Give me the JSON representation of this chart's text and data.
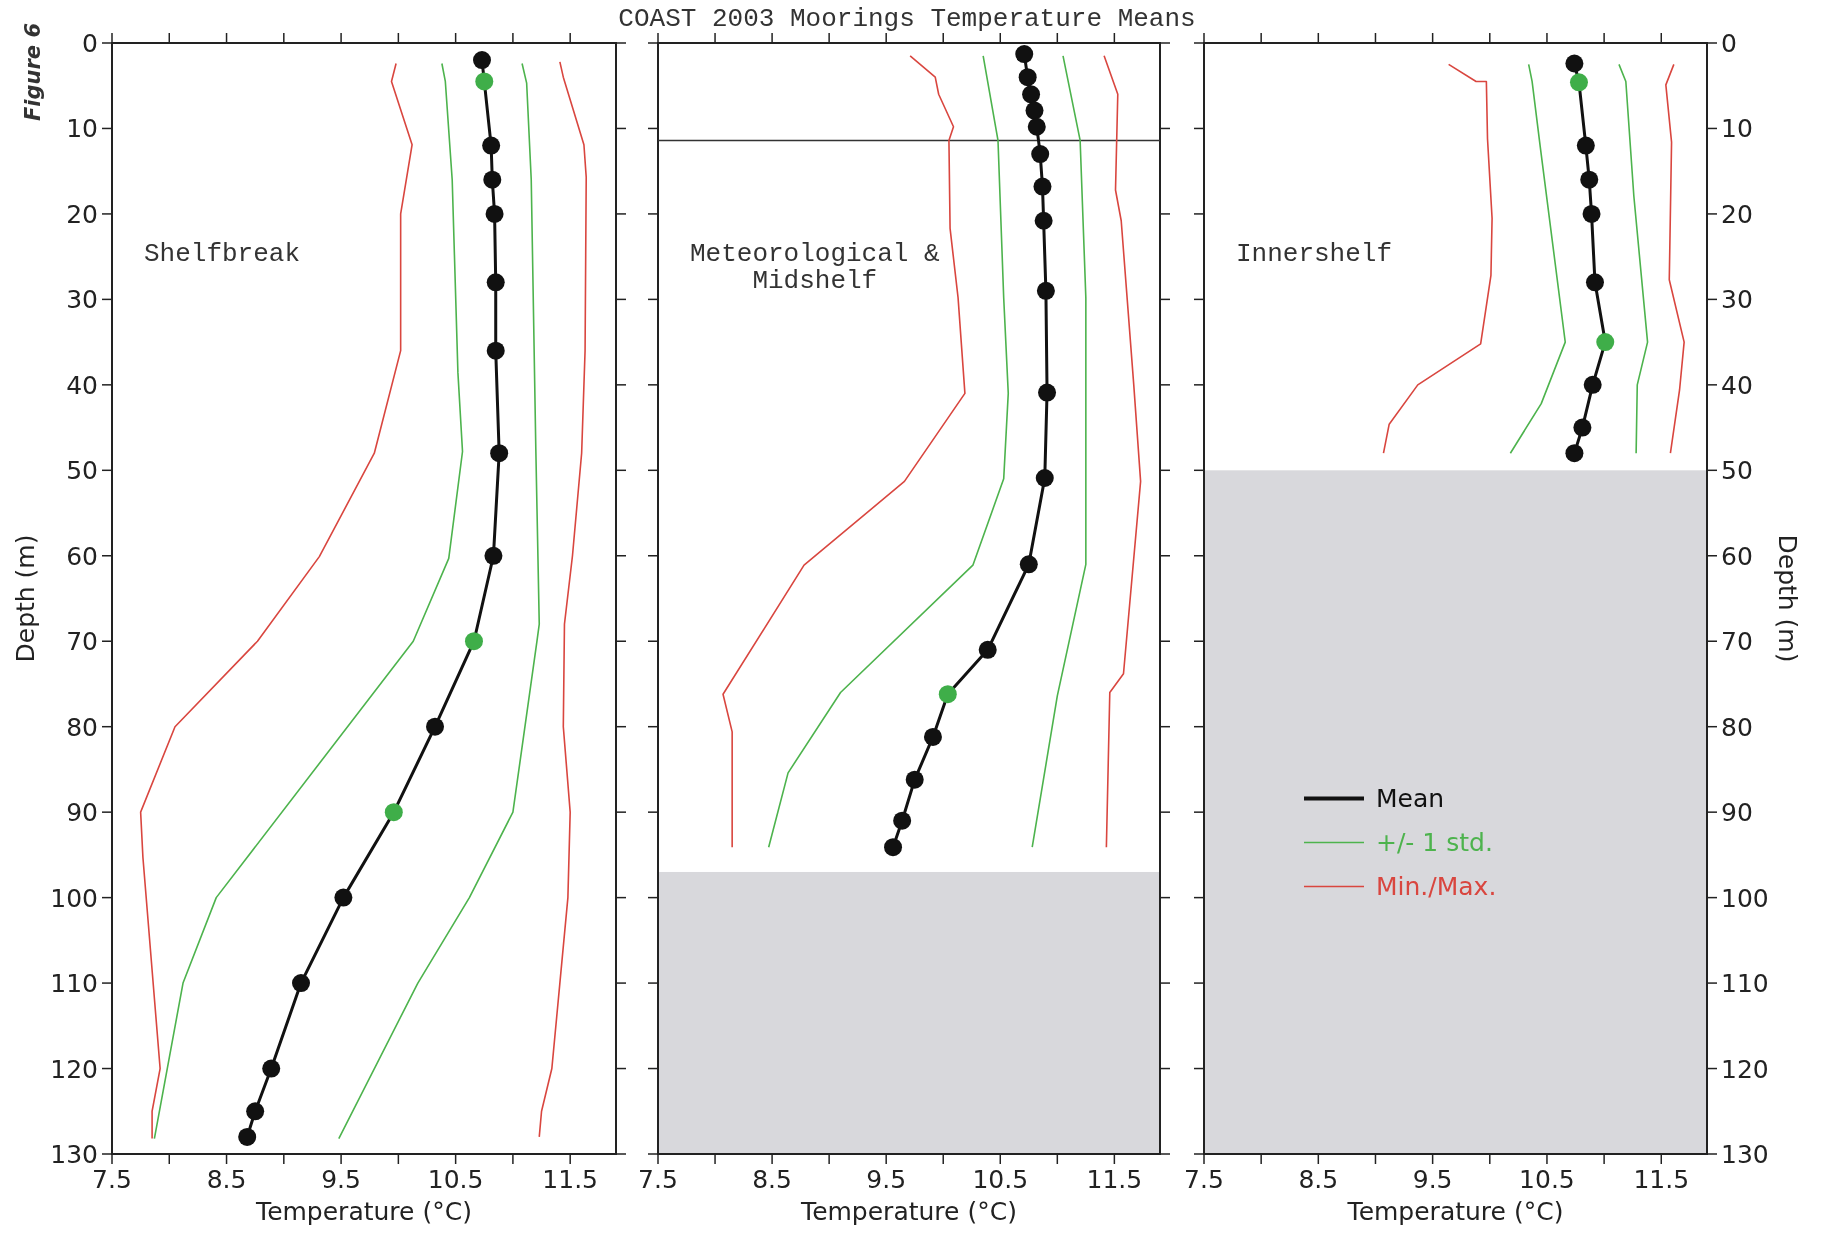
{
  "chart_data": [
    {
      "type": "line",
      "title": "Shelfbreak",
      "xlabel": "Temperature (°C)",
      "ylabel": "Depth (m)",
      "xlim": [
        7.5,
        11.9
      ],
      "ylim": [
        130,
        0
      ],
      "xticks": [
        7.5,
        {
          "value": 8,
          "label": null
        },
        8.5,
        {
          "value": 9,
          "label": null
        },
        9.5,
        {
          "value": 10,
          "label": null
        },
        10.5,
        {
          "value": 11,
          "label": null
        },
        11.5
      ],
      "yticks": [
        0,
        10,
        20,
        30,
        40,
        50,
        60,
        70,
        80,
        90,
        100,
        110,
        120,
        130
      ],
      "annotations": [
        "COAST 2003 Moorings Temperature Means",
        "Figure 6"
      ],
      "series": [
        {
          "color": "#111111",
          "marker": "circle",
          "x": [
            10.73,
            10.75,
            10.81,
            10.82,
            10.84,
            10.85,
            10.85,
            10.88,
            10.83,
            10.66,
            10.32,
            9.96,
            9.52,
            9.15,
            8.89,
            8.75,
            8.68
          ],
          "values": [
            2,
            4.5,
            12,
            16,
            20,
            28,
            36,
            48,
            60,
            70,
            80,
            90,
            100,
            110,
            120,
            125,
            128
          ],
          "colors": [
            "#111111",
            "#3fae49",
            "#111111",
            "#111111",
            "#111111",
            "#111111",
            "#111111",
            "#111111",
            "#111111",
            "#3fae49",
            "#111111",
            "#3fae49",
            "#111111",
            "#111111",
            "#111111",
            "#111111",
            "#111111"
          ]
        },
        {
          "color": "#4db34d",
          "x": [
            10.38,
            10.41,
            10.47,
            10.52,
            10.56,
            10.44,
            10.13,
            8.41,
            8.12,
            7.87
          ],
          "values": [
            2.4,
            4.5,
            16,
            38.6,
            47.8,
            60.3,
            70,
            100,
            110,
            128.2
          ]
        },
        {
          "color": "#4db34d",
          "x": [
            11.08,
            11.12,
            11.16,
            11.2,
            11.23,
            11.21,
            11.0,
            10.62,
            10.17,
            9.48
          ],
          "values": [
            2.4,
            4.7,
            16,
            47.5,
            68,
            70,
            90,
            100,
            110,
            128.2
          ]
        },
        {
          "color": "#d9463f",
          "x": [
            9.98,
            9.94,
            10.12,
            10.02,
            10.02,
            9.79,
            9.31,
            8.77,
            8.05,
            7.75,
            7.77,
            7.92,
            7.85,
            7.85
          ],
          "values": [
            2.4,
            4.5,
            11.9,
            20,
            36,
            48,
            60.1,
            70,
            80,
            90,
            95.3,
            120,
            125,
            128.2
          ]
        },
        {
          "color": "#d9463f",
          "x": [
            11.41,
            11.44,
            11.62,
            11.64,
            11.63,
            11.6,
            11.52,
            11.45,
            11.44,
            11.5,
            11.48,
            11.41,
            11.34,
            11.25,
            11.23
          ],
          "values": [
            2.2,
            4,
            11.9,
            15.7,
            36,
            48,
            60,
            68,
            80,
            90,
            100,
            110,
            120,
            125,
            128
          ]
        }
      ]
    },
    {
      "type": "line",
      "title": "Meteorological &\nMidshelf",
      "xlabel": "Temperature (°C)",
      "xlim": [
        7.5,
        11.9
      ],
      "ylim": [
        130,
        0
      ],
      "tick_labels": "x",
      "xticks": [
        7.5,
        {
          "value": 8,
          "label": null
        },
        8.5,
        {
          "value": 9,
          "label": null
        },
        9.5,
        {
          "value": 10,
          "label": null
        },
        10.5,
        {
          "value": 11,
          "label": null
        },
        11.5
      ],
      "yticks": [
        0,
        10,
        20,
        30,
        40,
        50,
        60,
        70,
        80,
        90,
        100,
        110,
        120,
        130
      ],
      "bands": [
        {
          "axis": "y",
          "from": 97,
          "to": 130,
          "color": "#d8d8dc"
        }
      ],
      "ref_lines": [
        {
          "axis": "y",
          "value": 11.4,
          "color": "#333333"
        }
      ],
      "series": [
        {
          "color": "#111111",
          "marker": "circle",
          "x": [
            10.71,
            10.74,
            10.77,
            10.8,
            10.82,
            10.85,
            10.87,
            10.88,
            10.9,
            10.91,
            10.89,
            10.75,
            10.39,
            10.04,
            9.91,
            9.75,
            9.64,
            9.56
          ],
          "values": [
            1.3,
            4,
            6,
            7.9,
            9.8,
            13,
            16.8,
            20.8,
            29,
            40.9,
            50.9,
            61,
            71,
            76.2,
            81.2,
            86.2,
            91,
            94.1
          ],
          "colors": [
            "#111111",
            "#111111",
            "#111111",
            "#111111",
            "#111111",
            "#111111",
            "#111111",
            "#111111",
            "#111111",
            "#111111",
            "#111111",
            "#111111",
            "#111111",
            "#3fae49",
            "#111111",
            "#111111",
            "#111111",
            "#111111"
          ]
        },
        {
          "color": "#4db34d",
          "x": [
            10.35,
            10.48,
            10.53,
            10.57,
            10.53,
            10.26,
            9.1,
            8.64,
            8.47
          ],
          "values": [
            1.5,
            11.4,
            29.8,
            41,
            51,
            61.1,
            76,
            85.4,
            94.1
          ]
        },
        {
          "color": "#4db34d",
          "x": [
            11.05,
            11.2,
            11.25,
            11.25,
            11.0,
            10.78
          ],
          "values": [
            1.5,
            11.4,
            29.8,
            61,
            76.4,
            94.1
          ]
        },
        {
          "color": "#d9463f",
          "x": [
            9.71,
            9.93,
            9.96,
            10.09,
            10.05,
            10.06,
            10.13,
            10.19,
            9.66,
            8.78,
            8.07,
            8.15,
            8.15
          ],
          "values": [
            1.5,
            4,
            6,
            9.8,
            11.4,
            21.7,
            29.8,
            41,
            51.3,
            61.1,
            76.2,
            80.6,
            94.1
          ]
        },
        {
          "color": "#d9463f",
          "x": [
            11.41,
            11.53,
            11.51,
            11.56,
            11.67,
            11.73,
            11.58,
            11.46,
            11.43
          ],
          "values": [
            1.5,
            6,
            17.2,
            20.8,
            40,
            51.3,
            73.8,
            76,
            94.1
          ]
        }
      ]
    },
    {
      "type": "line",
      "title": "Innershelf",
      "xlabel": "Temperature (°C)",
      "y2label": "Depth (m)",
      "xlim": [
        7.5,
        11.9
      ],
      "y2lim": [
        130,
        0
      ],
      "legend": "bottom left",
      "xticks": [
        7.5,
        {
          "value": 8,
          "label": null
        },
        8.5,
        {
          "value": 9,
          "label": null
        },
        9.5,
        {
          "value": 10,
          "label": null
        },
        10.5,
        {
          "value": 11,
          "label": null
        },
        11.5
      ],
      "y2ticks": [
        0,
        10,
        20,
        30,
        40,
        50,
        60,
        70,
        80,
        90,
        100,
        110,
        120,
        130
      ],
      "bands": [
        {
          "axis": "y2",
          "from": 50,
          "to": 130,
          "color": "#d8d8dc"
        }
      ],
      "series": [
        {
          "name": "Mean",
          "axis": "y2",
          "color": "#111111",
          "marker": "circle",
          "x": [
            10.74,
            10.78,
            10.84,
            10.87,
            10.89,
            10.92,
            11.01,
            10.9,
            10.81,
            10.74
          ],
          "values": [
            2.4,
            4.6,
            12,
            16,
            20,
            28,
            35,
            40,
            45,
            48
          ],
          "colors": [
            "#111111",
            "#3fae49",
            "#111111",
            "#111111",
            "#111111",
            "#111111",
            "#3fae49",
            "#111111",
            "#111111",
            "#111111"
          ]
        },
        {
          "name": "+/-  1 std.",
          "axis": "y2",
          "color": "#4db34d",
          "x": [
            10.34,
            10.37,
            10.44,
            10.66,
            10.45,
            10.18
          ],
          "values": [
            2.5,
            4.5,
            12,
            35,
            42.2,
            48
          ]
        },
        {
          "axis": "y2",
          "color": "#4db34d",
          "x": [
            11.13,
            11.19,
            11.26,
            11.38,
            11.29,
            11.28
          ],
          "values": [
            2.5,
            4.5,
            17.9,
            35,
            40,
            48
          ]
        },
        {
          "name": "Min./Max.",
          "axis": "y2",
          "color": "#d9463f",
          "x": [
            9.64,
            9.88,
            9.97,
            9.98,
            10.02,
            10.01,
            9.92,
            9.37,
            9.12,
            9.07
          ],
          "values": [
            2.5,
            4.5,
            4.5,
            11.2,
            20.5,
            27.2,
            35.2,
            40,
            44.6,
            48
          ]
        },
        {
          "axis": "y2",
          "color": "#d9463f",
          "x": [
            11.61,
            11.54,
            11.59,
            11.57,
            11.7,
            11.66,
            11.58
          ],
          "values": [
            2.5,
            4.9,
            11.6,
            27.7,
            35,
            40.6,
            48
          ]
        }
      ]
    }
  ]
}
